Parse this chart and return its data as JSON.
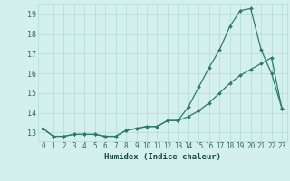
{
  "xlabel": "Humidex (Indice chaleur)",
  "x": [
    0,
    1,
    2,
    3,
    4,
    5,
    6,
    7,
    8,
    9,
    10,
    11,
    12,
    13,
    14,
    15,
    16,
    17,
    18,
    19,
    20,
    21,
    22,
    23
  ],
  "line1": [
    13.2,
    12.8,
    12.8,
    12.9,
    12.9,
    12.9,
    12.8,
    12.8,
    13.1,
    13.2,
    13.3,
    13.3,
    13.6,
    13.6,
    14.3,
    15.3,
    16.3,
    17.2,
    18.4,
    19.2,
    19.3,
    17.2,
    16.0,
    14.2
  ],
  "line2": [
    13.2,
    12.8,
    12.8,
    12.9,
    12.9,
    12.9,
    12.8,
    12.8,
    13.1,
    13.2,
    13.3,
    13.3,
    13.6,
    13.6,
    13.8,
    14.1,
    14.5,
    15.0,
    15.5,
    15.9,
    16.2,
    16.5,
    16.8,
    14.2
  ],
  "line_color": "#2d7a6e",
  "bg_color": "#d4f0ec",
  "grid_color": "#b8ddd8",
  "ylim": [
    12.55,
    19.55
  ],
  "xlim": [
    -0.5,
    23.5
  ],
  "yticks": [
    13,
    14,
    15,
    16,
    17,
    18,
    19
  ],
  "xticks": [
    0,
    1,
    2,
    3,
    4,
    5,
    6,
    7,
    8,
    9,
    10,
    11,
    12,
    13,
    14,
    15,
    16,
    17,
    18,
    19,
    20,
    21,
    22,
    23
  ],
  "tick_fontsize": 5.5,
  "xlabel_fontsize": 6.5,
  "tick_color": "#2d6a60",
  "xlabel_color": "#1a4a42"
}
